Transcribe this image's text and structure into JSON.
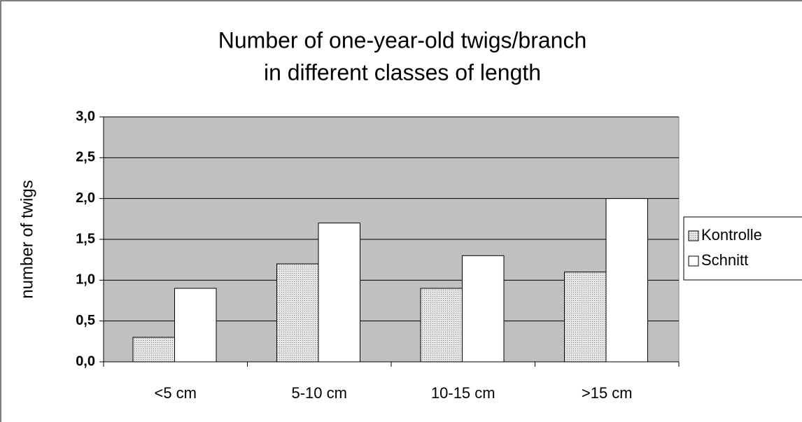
{
  "chart_data": {
    "type": "bar",
    "title": [
      "Number of one-year-old twigs/branch",
      "in different classes of length"
    ],
    "y_label": "number of twigs",
    "categories": [
      "<5 cm",
      "5-10 cm",
      "10-15 cm",
      ">15 cm"
    ],
    "series": [
      {
        "name": "Kontrolle",
        "color": "#e4e4e4",
        "values": [
          0.3,
          1.2,
          0.9,
          1.1
        ]
      },
      {
        "name": "Schnitt",
        "color": "#ffffff",
        "values": [
          0.9,
          1.7,
          1.3,
          2.0
        ]
      }
    ],
    "ylim": [
      0,
      3
    ],
    "yticks": [
      {
        "value": 0,
        "label": "0,0"
      },
      {
        "value": 0.5,
        "label": "0,5"
      },
      {
        "value": 1,
        "label": "1,0"
      },
      {
        "value": 1.5,
        "label": "1,5"
      },
      {
        "value": 2,
        "label": "2,0"
      },
      {
        "value": 2.5,
        "label": "2,5"
      },
      {
        "value": 3,
        "label": "3,0"
      }
    ],
    "grid": true,
    "legend": "right"
  }
}
